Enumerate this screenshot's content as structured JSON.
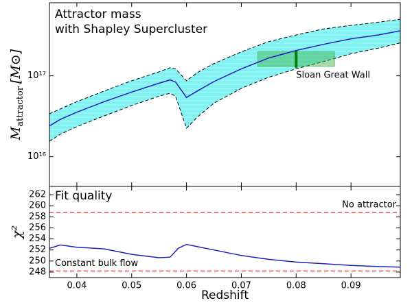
{
  "chart_data": [
    {
      "type": "band",
      "title": [
        "Attractor mass",
        "with Shapley Supercluster"
      ],
      "ylabel": {
        "symbol": "M",
        "subscript": "attractor",
        "unit": "[M⊙]"
      },
      "x": [
        0.035,
        0.037,
        0.04,
        0.045,
        0.05,
        0.055,
        0.057,
        0.058,
        0.06,
        0.062,
        0.065,
        0.07,
        0.075,
        0.08,
        0.085,
        0.09,
        0.095,
        0.099
      ],
      "series": [
        {
          "color": "#1f1fc0",
          "values": [
            2.4e+16,
            2.9e+16,
            3.55e+16,
            4.8e+16,
            6.3e+16,
            8.1e+16,
            8.9e+16,
            8.4e+16,
            5.4e+16,
            6.5e+16,
            8.5e+16,
            1.22e+17,
            1.66e+17,
            2.06e+17,
            2.45e+17,
            2.87e+17,
            3.2e+17,
            3.6e+17
          ]
        }
      ],
      "band": {
        "color": "#80f2f2",
        "upper": [
          3.4e+16,
          3.9e+16,
          4.8e+16,
          6.5e+16,
          8.7e+16,
          1.12e+17,
          1.26e+17,
          1.22e+17,
          8.7e+16,
          1.1e+17,
          1.42e+17,
          1.98e+17,
          2.65e+17,
          3.2e+17,
          3.8e+17,
          4.2e+17,
          4.6e+17,
          5e+17
        ],
        "lower": [
          1.55e+16,
          1.9e+16,
          2.35e+16,
          3.2e+16,
          4.3e+16,
          5.6e+16,
          6.1e+16,
          5.6e+16,
          2.25e+16,
          3.1e+16,
          4.6e+16,
          7e+16,
          9.6e+16,
          1.22e+17,
          1.5e+17,
          1.87e+17,
          2.2e+17,
          2.55e+17
        ]
      },
      "region": {
        "label": "Sloan Great Wall",
        "x": [
          0.073,
          0.087
        ],
        "y": [
          1.31e+17,
          1.98e+17
        ],
        "center": 0.08,
        "color": "#3cb043"
      },
      "log_y": true,
      "xlim": [
        0.035,
        0.099
      ],
      "xticks": [
        0.04,
        0.05,
        0.06,
        0.07,
        0.08,
        0.09
      ],
      "ylim": [
        4300000000000000.0,
        8e+17
      ],
      "yticks": [
        {
          "value": 1e+16,
          "label": "10¹⁶"
        },
        {
          "value": 1e+17,
          "label": "10¹⁷"
        }
      ]
    },
    {
      "type": "line",
      "title": "Fit quality",
      "ylabel": "χ²",
      "xlabel": "Redshift",
      "x": [
        0.035,
        0.037,
        0.04,
        0.045,
        0.05,
        0.055,
        0.057,
        0.0585,
        0.06,
        0.062,
        0.065,
        0.07,
        0.075,
        0.08,
        0.085,
        0.09,
        0.095,
        0.099
      ],
      "series": [
        {
          "color": "#1f1fc0",
          "values": [
            252.3,
            252.9,
            252.5,
            252.2,
            251.2,
            250.6,
            250.7,
            252.3,
            253.0,
            252.6,
            252.0,
            251.0,
            250.3,
            249.8,
            249.5,
            249.2,
            249.0,
            248.9
          ]
        }
      ],
      "hlines": [
        {
          "label": "No attractor",
          "value": 258.8,
          "color": "#e02020"
        },
        {
          "label": "Constant bulk flow",
          "value": 248.2,
          "color": "#e02020"
        }
      ],
      "xlim": [
        0.035,
        0.099
      ],
      "xticks": [
        0.04,
        0.05,
        0.06,
        0.07,
        0.08,
        0.09
      ],
      "ylim": [
        247,
        263.5
      ],
      "yticks": [
        248,
        250,
        252,
        254,
        256,
        258,
        260,
        262
      ]
    }
  ]
}
